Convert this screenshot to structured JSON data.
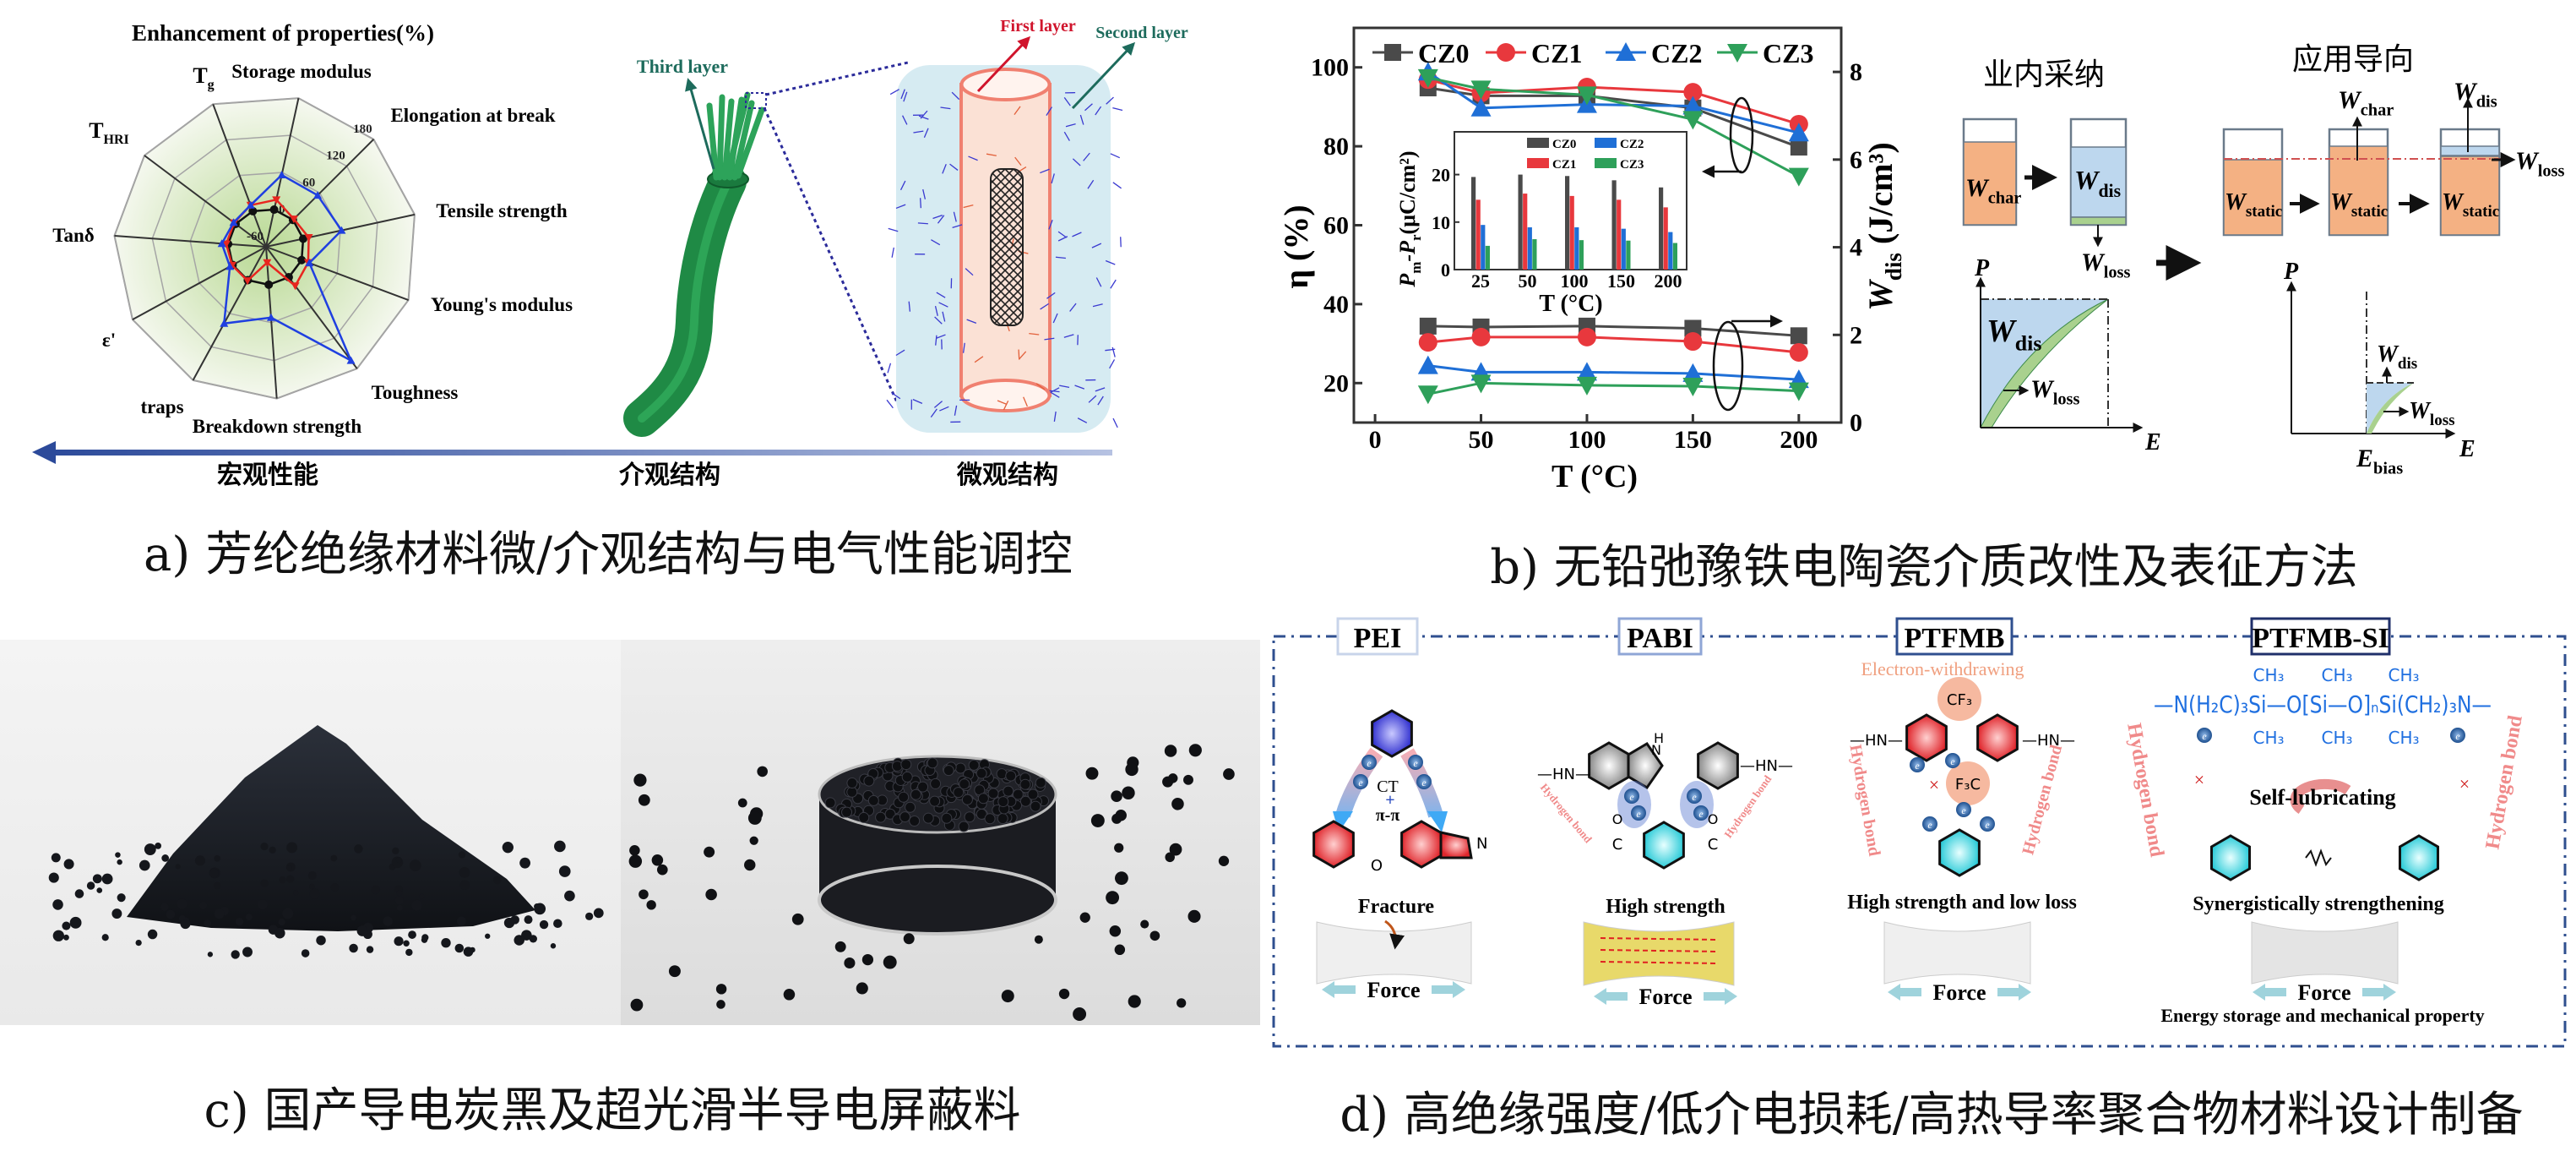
{
  "panel_a": {
    "caption": "a) 芳纶绝缘材料微/介观结构与电气性能调控",
    "scale_arrow": {
      "macro": "宏观性能",
      "meso": "介观结构",
      "micro": "微观结构"
    },
    "structure_labels": {
      "third_layer": "Third layer",
      "first_layer": "First layer",
      "second_layer": "Second layer"
    },
    "colors": {
      "fiber": "#1f8a45",
      "arrow": "#2c4a9a",
      "first_layer": "#d0142c",
      "second_layer": "#1d6b5c",
      "shell": "#d6ebf2",
      "core": "#fbe1d5"
    }
  },
  "panel_b": {
    "caption": "b) 无铅弛豫铁电陶瓷介质改性及表征方法",
    "schematic": {
      "industry_title": "业内采纳",
      "application_title": "应用导向",
      "W": "W",
      "char": "char",
      "dis": "dis",
      "loss": "loss",
      "static": "static",
      "P": "P",
      "E": "E",
      "bias": "bias",
      "colors": {
        "charge": "#f4b183",
        "discharge": "#bdd7ee",
        "loss": "#a9d18e"
      }
    }
  },
  "panel_c": {
    "caption": "c) 国产导电炭黑及超光滑半导电屏蔽料"
  },
  "panel_d": {
    "caption": "d) 高绝缘强度/低介电损耗/高热导率聚合物材料设计制备",
    "headers": [
      "PEI",
      "PABI",
      "PTFMB",
      "PTFMB-SI"
    ],
    "electron_withdrawing": "Electron-withdrawing",
    "ct": "CT",
    "plus": "+",
    "pi_pi": "π-π",
    "hydrogen_bond": "Hydrogen bond",
    "self_lubricating": "Self-lubricating",
    "outcomes": [
      "Fracture",
      "High strength",
      "High strength and low loss",
      "Synergistically strengthening"
    ],
    "force": "Force",
    "energy_note": "Energy storage and mechanical property",
    "chem": {
      "hn": "—HN—",
      "cf3": "CF₃",
      "f3c": "F₃C",
      "electron": "e",
      "o": "O",
      "n": "N",
      "h": "H",
      "c": "C",
      "si_chain": "—N(H₂C)₃Si—O[Si—O]ₙSi(CH₂)₃N—",
      "ch3": "CH₃",
      "cross": "×"
    }
  },
  "chart_data": [
    {
      "type": "radar",
      "title": "Enhancement of properties(%)",
      "axes": [
        {
          "text": "T",
          "sub": "g"
        },
        {
          "text": "Storage modulus"
        },
        {
          "text": "Elongation at break"
        },
        {
          "text": "Tensile strength"
        },
        {
          "text": "Young's modulus"
        },
        {
          "text": "Toughness"
        },
        {
          "text": "Breakdown strength"
        },
        {
          "text": "traps"
        },
        {
          "text": "ε'"
        },
        {
          "text": "Tanδ"
        },
        {
          "text": "T",
          "sub": "HRI"
        }
      ],
      "range": [
        -60,
        180
      ],
      "ticks": [
        "-60",
        "0",
        "60",
        "120",
        "180"
      ],
      "series": [
        {
          "color": "#111111",
          "marker": "circle",
          "values": [
            0,
            0,
            0,
            0,
            0,
            0,
            0,
            0,
            0,
            0,
            0
          ]
        },
        {
          "color": "#e8261f",
          "marker": "triangle-down",
          "values": [
            10,
            16,
            2,
            9,
            11,
            17,
            -35,
            1,
            1,
            3,
            3
          ]
        },
        {
          "color": "#1f3fe0",
          "marker": "triangle-up",
          "values": [
            10,
            56,
            55,
            62,
            13,
            164,
            52,
            78,
            5,
            10,
            4
          ]
        }
      ]
    },
    {
      "type": "line",
      "x": [
        25,
        50,
        100,
        150,
        200
      ],
      "xlabel": "T (°C)",
      "ylabel": "η (%)",
      "y2label": {
        "symbol": "W",
        "sub": "dis",
        "unit": " (J/cm³)"
      },
      "xlim": [
        -10,
        220
      ],
      "ylim": [
        10,
        110
      ],
      "y2lim": [
        0,
        9
      ],
      "xticks": [
        "0",
        "50",
        "100",
        "150",
        "200"
      ],
      "yticks": [
        "20",
        "40",
        "60",
        "80",
        "100"
      ],
      "y2ticks": [
        "0",
        "2",
        "4",
        "6",
        "8"
      ],
      "legend": "top",
      "series": [
        {
          "name": "CZ0",
          "color": "#4a4a4a",
          "marker": "square",
          "eta": [
            94.8,
            92.8,
            92.8,
            89.7,
            79.8
          ],
          "W_dis": [
            2.2,
            2.18,
            2.2,
            2.15,
            1.98
          ]
        },
        {
          "name": "CZ1",
          "color": "#e8383d",
          "marker": "circle",
          "eta": [
            96.9,
            93.5,
            95.0,
            93.7,
            85.6
          ],
          "W_dis": [
            1.83,
            1.95,
            1.95,
            1.85,
            1.6
          ]
        },
        {
          "name": "CZ2",
          "color": "#1f6fd6",
          "marker": "triangle-up",
          "eta": [
            98.8,
            89.7,
            90.6,
            90.2,
            83.4
          ],
          "W_dis": [
            1.3,
            1.15,
            1.15,
            1.12,
            0.98
          ]
        },
        {
          "name": "CZ3",
          "color": "#2ea05a",
          "marker": "triangle-down",
          "eta": [
            97.4,
            94.5,
            93.0,
            86.8,
            72.4
          ],
          "W_dis": [
            0.65,
            0.9,
            0.85,
            0.83,
            0.72
          ]
        }
      ]
    },
    {
      "type": "bar",
      "categories": [
        "25",
        "50",
        "100",
        "150",
        "200"
      ],
      "xlabel": "T (°C)",
      "ylabel": {
        "p1": "P",
        "s1": "m",
        "p2": "-P",
        "s2": "r",
        "unit": "(μC/cm²)"
      },
      "ylim": [
        0,
        29
      ],
      "yticks": [
        "0",
        "10",
        "20"
      ],
      "legend": "top-right",
      "series": [
        {
          "name": "CZ0",
          "color": "#4a4a4a",
          "values": [
            19.5,
            20.0,
            19.7,
            18.8,
            17.3
          ]
        },
        {
          "name": "CZ1",
          "color": "#e8383d",
          "values": [
            14.7,
            16.0,
            15.5,
            14.7,
            13.1
          ]
        },
        {
          "name": "CZ2",
          "color": "#1f6fd6",
          "values": [
            9.4,
            8.9,
            8.9,
            8.6,
            7.9
          ]
        },
        {
          "name": "CZ3",
          "color": "#2ea05a",
          "values": [
            5.0,
            6.4,
            6.2,
            6.1,
            5.6
          ]
        }
      ]
    }
  ]
}
